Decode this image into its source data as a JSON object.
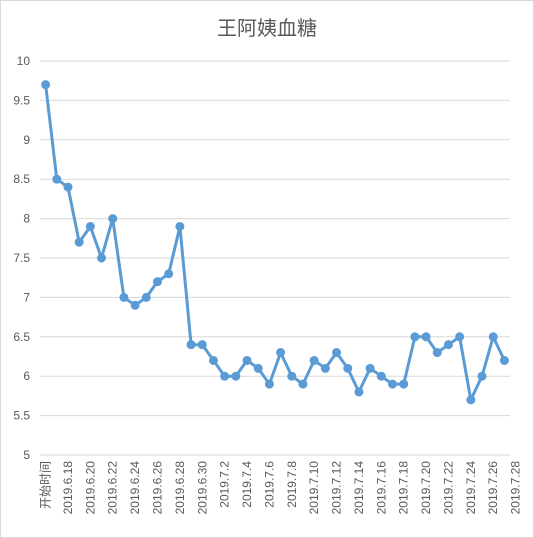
{
  "chart_data": {
    "type": "line",
    "title": "王阿姨血糖",
    "xlabel": "",
    "ylabel": "",
    "ylim": [
      5,
      10
    ],
    "yticks": [
      5,
      5.5,
      6,
      6.5,
      7,
      7.5,
      8,
      8.5,
      9,
      9.5,
      10
    ],
    "y_tick_labels": [
      "5",
      "5.5",
      "6",
      "6.5",
      "7",
      "7.5",
      "8",
      "8.5",
      "9",
      "9.5",
      "10"
    ],
    "grid": true,
    "legend": "none",
    "color": "#5b9bd5",
    "x_labels": [
      "开始时间",
      "2019.6.18",
      "2019.6.20",
      "2019.6.22",
      "2019.6.24",
      "2019.6.26",
      "2019.6.28",
      "2019.6.30",
      "2019.7.2",
      "2019.7.4",
      "2019.7.6",
      "2019.7.8",
      "2019.7.10",
      "2019.7.12",
      "2019.7.14",
      "2019.7.16",
      "2019.7.18",
      "2019.7.20",
      "2019.7.22",
      "2019.7.24",
      "2019.7.26",
      "2019.7.28"
    ],
    "values": [
      9.7,
      8.5,
      8.4,
      7.7,
      7.9,
      7.5,
      8.0,
      7.0,
      6.9,
      7.0,
      7.2,
      7.3,
      7.9,
      6.4,
      6.4,
      6.2,
      6.0,
      6.0,
      6.2,
      6.1,
      5.9,
      6.3,
      6.0,
      5.9,
      6.2,
      6.1,
      6.3,
      6.1,
      5.8,
      6.1,
      6.0,
      5.9,
      5.9,
      6.5,
      6.5,
      6.3,
      6.4,
      6.5,
      5.7,
      6.0,
      6.5,
      6.2
    ]
  }
}
